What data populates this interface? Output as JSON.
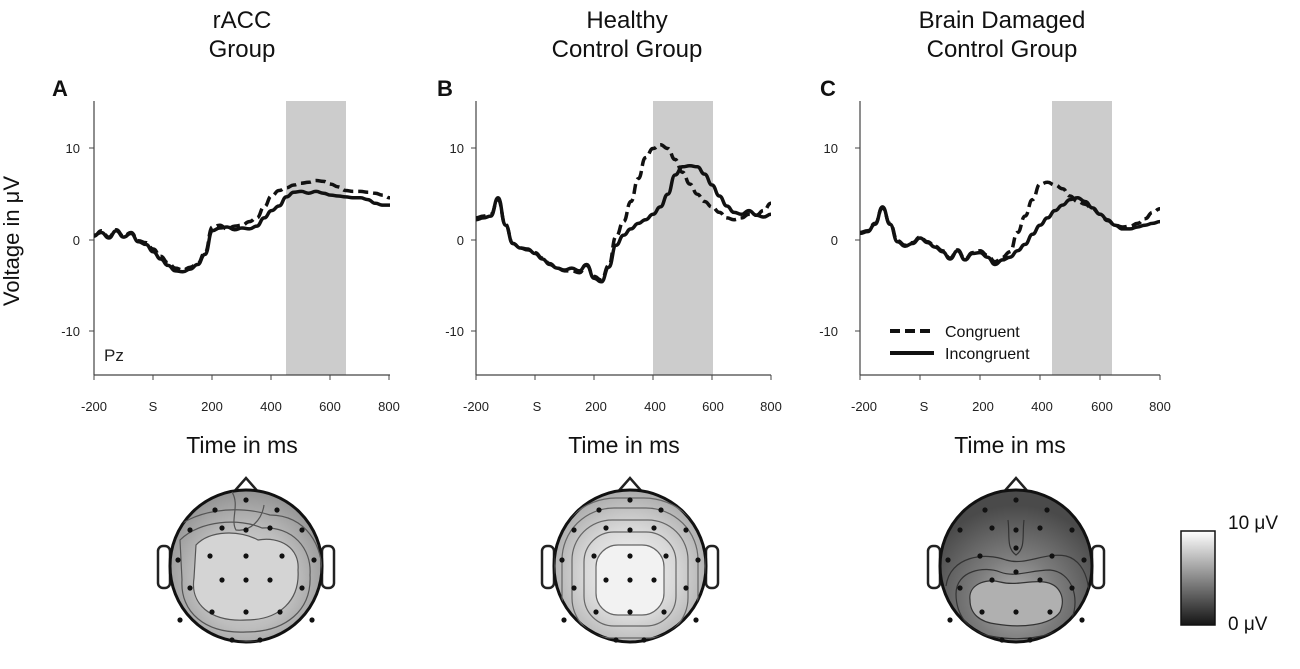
{
  "figure": {
    "y_axis_label": "Voltage in μV",
    "x_axis_label": "Time in ms",
    "x_ticks": [
      "-200",
      "S",
      "200",
      "400",
      "600",
      "800"
    ],
    "y_ticks": [
      "10",
      "0",
      "-10"
    ],
    "legend": {
      "congruent": "Congruent",
      "incongruent": "Incongruent"
    },
    "colorbar": {
      "max_label": "10 μV",
      "min_label": "0 μV"
    },
    "electrode_label": "Pz"
  },
  "panels": [
    {
      "letter": "A",
      "title_line1": "rACC",
      "title_line2": "Group"
    },
    {
      "letter": "B",
      "title_line1": "Healthy",
      "title_line2": "Control Group"
    },
    {
      "letter": "C",
      "title_line1": "Brain Damaged",
      "title_line2": "Control Group"
    }
  ],
  "chart_data": [
    {
      "type": "line",
      "title": "rACC Group",
      "xlabel": "Time in ms",
      "ylabel": "Voltage in μV",
      "xlim": [
        -200,
        800
      ],
      "ylim": [
        -15,
        15
      ],
      "shaded_window": [
        450,
        650
      ],
      "series": [
        {
          "name": "Congruent",
          "style": "dashed",
          "x": [
            -200,
            -175,
            -150,
            -125,
            -100,
            -75,
            -50,
            -25,
            0,
            25,
            50,
            75,
            100,
            125,
            150,
            175,
            200,
            225,
            250,
            275,
            300,
            325,
            350,
            375,
            400,
            425,
            450,
            475,
            500,
            525,
            550,
            575,
            600,
            625,
            650,
            675,
            700,
            725,
            750,
            775,
            800
          ],
          "y": [
            0.2,
            0.8,
            0.1,
            0.9,
            0.2,
            0.6,
            -0.3,
            -0.5,
            -1.2,
            -2.0,
            -2.7,
            -3.3,
            -3.5,
            -3.2,
            -2.8,
            -1.6,
            1.2,
            1.4,
            1.0,
            1.3,
            1.4,
            1.8,
            2.2,
            3.4,
            4.6,
            5.2,
            5.5,
            5.8,
            6.0,
            6.1,
            6.3,
            6.2,
            5.9,
            5.6,
            5.2,
            5.1,
            5.1,
            5.0,
            4.9,
            4.7,
            4.4
          ]
        },
        {
          "name": "Incongruent",
          "style": "solid",
          "x": [
            -200,
            -175,
            -150,
            -125,
            -100,
            -75,
            -50,
            -25,
            0,
            25,
            50,
            75,
            100,
            125,
            150,
            175,
            200,
            225,
            250,
            275,
            300,
            325,
            350,
            375,
            400,
            425,
            450,
            475,
            500,
            525,
            550,
            575,
            600,
            625,
            650,
            675,
            700,
            725,
            750,
            775,
            800
          ],
          "y": [
            0.3,
            0.6,
            0.0,
            0.8,
            0.1,
            0.5,
            -0.4,
            -0.7,
            -1.5,
            -2.3,
            -3.0,
            -3.6,
            -3.7,
            -3.4,
            -2.9,
            -1.8,
            0.8,
            1.1,
            1.2,
            0.9,
            1.1,
            1.0,
            1.3,
            2.2,
            3.0,
            3.5,
            4.5,
            5.0,
            5.1,
            4.9,
            5.1,
            4.9,
            4.7,
            4.6,
            4.5,
            4.4,
            4.4,
            4.2,
            3.8,
            3.6,
            3.6
          ]
        }
      ]
    },
    {
      "type": "line",
      "title": "Healthy Control Group",
      "xlabel": "Time in ms",
      "ylabel": "Voltage in μV",
      "xlim": [
        -200,
        800
      ],
      "ylim": [
        -15,
        15
      ],
      "shaded_window": [
        400,
        600
      ],
      "series": [
        {
          "name": "Congruent",
          "style": "dashed",
          "x": [
            -200,
            -175,
            -150,
            -125,
            -100,
            -75,
            -50,
            -25,
            0,
            25,
            50,
            75,
            100,
            125,
            150,
            175,
            200,
            225,
            250,
            275,
            300,
            325,
            350,
            375,
            400,
            425,
            450,
            475,
            500,
            525,
            550,
            575,
            600,
            625,
            650,
            675,
            700,
            725,
            750,
            775,
            800
          ],
          "y": [
            2.2,
            2.4,
            2.6,
            4.2,
            1.5,
            -0.6,
            -1.1,
            -1.3,
            -1.6,
            -2.2,
            -2.8,
            -3.3,
            -3.6,
            -3.6,
            -3.8,
            -3.0,
            -4.2,
            -4.6,
            -3.0,
            0.2,
            1.8,
            4.0,
            6.5,
            8.8,
            9.8,
            10.2,
            9.8,
            8.6,
            7.2,
            5.9,
            4.8,
            4.0,
            3.4,
            2.8,
            2.2,
            2.0,
            2.2,
            2.6,
            2.5,
            3.0,
            3.8
          ]
        },
        {
          "name": "Incongruent",
          "style": "solid",
          "x": [
            -200,
            -175,
            -150,
            -125,
            -100,
            -75,
            -50,
            -25,
            0,
            25,
            50,
            75,
            100,
            125,
            150,
            175,
            200,
            225,
            250,
            275,
            300,
            325,
            350,
            375,
            400,
            425,
            450,
            475,
            500,
            525,
            550,
            575,
            600,
            625,
            650,
            675,
            700,
            725,
            750,
            775,
            800
          ],
          "y": [
            2.0,
            2.2,
            2.4,
            4.4,
            1.4,
            -0.6,
            -1.1,
            -1.2,
            -1.7,
            -2.3,
            -2.9,
            -3.3,
            -3.5,
            -3.3,
            -3.6,
            -2.9,
            -4.4,
            -4.8,
            -3.2,
            -0.8,
            0.3,
            1.0,
            1.6,
            2.0,
            2.6,
            3.4,
            4.8,
            6.9,
            7.8,
            7.9,
            7.8,
            7.0,
            5.8,
            4.6,
            3.5,
            2.8,
            2.6,
            3.0,
            2.5,
            2.3,
            2.6
          ]
        }
      ]
    },
    {
      "type": "line",
      "title": "Brain Damaged Control Group",
      "xlabel": "Time in ms",
      "ylabel": "Voltage in μV",
      "xlim": [
        -200,
        800
      ],
      "ylim": [
        -15,
        15
      ],
      "shaded_window": [
        430,
        630
      ],
      "series": [
        {
          "name": "Congruent",
          "style": "dashed",
          "x": [
            -200,
            -175,
            -150,
            -125,
            -100,
            -75,
            -50,
            -25,
            0,
            25,
            50,
            75,
            100,
            125,
            150,
            175,
            200,
            225,
            250,
            275,
            300,
            325,
            350,
            375,
            400,
            425,
            450,
            475,
            500,
            525,
            550,
            575,
            600,
            625,
            650,
            675,
            700,
            725,
            750,
            775,
            800
          ],
          "y": [
            0.6,
            0.8,
            1.6,
            3.3,
            1.6,
            -0.3,
            -0.8,
            -0.5,
            0.1,
            -0.4,
            -0.9,
            -1.4,
            -2.2,
            -1.3,
            -2.3,
            -1.6,
            -1.4,
            -1.9,
            -2.6,
            -2.1,
            -1.5,
            0.6,
            2.4,
            4.2,
            5.9,
            6.1,
            5.8,
            5.4,
            4.6,
            4.0,
            3.7,
            3.2,
            2.6,
            1.9,
            1.4,
            1.2,
            1.3,
            1.6,
            2.1,
            2.8,
            3.2
          ]
        },
        {
          "name": "Incongruent",
          "style": "solid",
          "x": [
            -200,
            -175,
            -150,
            -125,
            -100,
            -75,
            -50,
            -25,
            0,
            25,
            50,
            75,
            100,
            125,
            150,
            175,
            200,
            225,
            250,
            275,
            300,
            325,
            350,
            375,
            400,
            425,
            450,
            475,
            500,
            525,
            550,
            575,
            600,
            625,
            650,
            675,
            700,
            725,
            750,
            775,
            800
          ],
          "y": [
            0.5,
            0.7,
            1.5,
            3.4,
            1.5,
            -0.4,
            -0.9,
            -0.6,
            0.0,
            -0.5,
            -1.0,
            -1.5,
            -2.3,
            -1.4,
            -2.4,
            -1.7,
            -1.6,
            -2.1,
            -2.9,
            -2.4,
            -2.1,
            -1.4,
            -0.7,
            0.4,
            1.4,
            2.2,
            3.0,
            3.6,
            4.2,
            4.4,
            4.0,
            3.3,
            2.6,
            2.0,
            1.4,
            1.0,
            1.0,
            1.2,
            1.4,
            1.6,
            1.8
          ]
        }
      ]
    }
  ]
}
